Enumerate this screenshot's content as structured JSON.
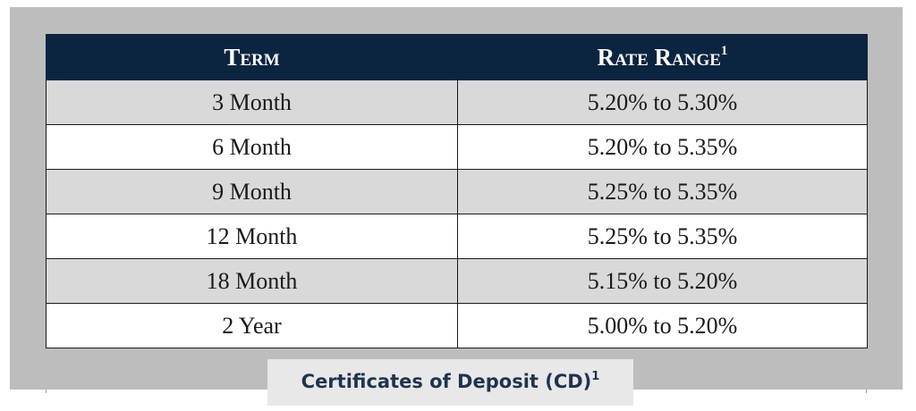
{
  "table": {
    "headers": {
      "term": "Term",
      "rate_range": "Rate Range",
      "rate_range_footnote": "1"
    },
    "rows": [
      {
        "term": "3 Month",
        "rate_range": "5.20% to 5.30%"
      },
      {
        "term": "6 Month",
        "rate_range": "5.20% to 5.35%"
      },
      {
        "term": "9 Month",
        "rate_range": "5.25% to 5.35%"
      },
      {
        "term": "12 Month",
        "rate_range": "5.25% to 5.35%"
      },
      {
        "term": "18 Month",
        "rate_range": "5.15% to 5.20%"
      },
      {
        "term": "2 Year",
        "rate_range": "5.00% to 5.20%"
      }
    ]
  },
  "caption": {
    "text": "Certificates of Deposit (CD)",
    "footnote": "1"
  },
  "colors": {
    "header_background": "#0b2540",
    "header_text": "#ffffff",
    "row_shade": "#d9d9d9",
    "frame_background": "#bdbdbd",
    "caption_text": "#1f3350"
  }
}
